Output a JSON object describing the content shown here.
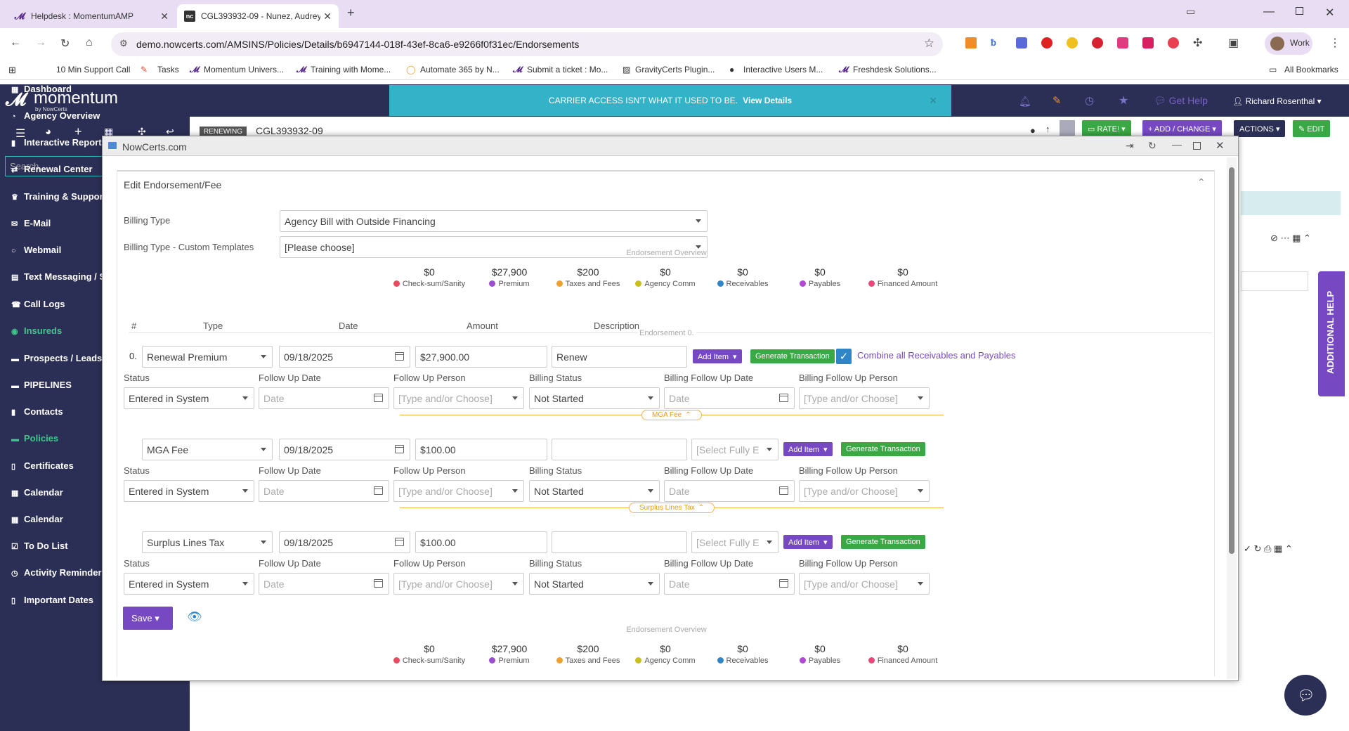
{
  "browser": {
    "tabs": [
      {
        "title": "Helpdesk : MomentumAMP"
      },
      {
        "title": "CGL393932-09 - Nunez, Audrey"
      }
    ],
    "url": "demo.nowcerts.com/AMSINS/Policies/Details/b6947144-018f-43ef-8ca6-e9266f0f31ec/Endorsements",
    "profile": "Work",
    "bookmarks": [
      "10 Min Support Call",
      "Tasks",
      "Momentum Univers...",
      "Training with Mome...",
      "Automate 365 by N...",
      "Submit a ticket : Mo...",
      "GravityCerts Plugin...",
      "Interactive Users M...",
      "Freshdesk Solutions..."
    ],
    "all_bookmarks": "All Bookmarks"
  },
  "app": {
    "logo": "momentum",
    "logo_sub": "by NowCerts",
    "banner_text": "CARRIER ACCESS ISN'T WHAT IT USED TO BE.",
    "banner_link": "View Details",
    "get_help": "Get Help",
    "user": "Richard Rosenthal",
    "search_placeholder": "Search",
    "policy_badge": "RENEWING",
    "policy_number": "CGL393932-09",
    "toolbar": {
      "rate": "RATE!",
      "add_change": "ADD / CHANGE",
      "actions": "ACTIONS",
      "edit": "EDIT"
    },
    "additional_help": "ADDITIONAL HELP"
  },
  "sidebar": {
    "items": [
      {
        "label": "Dashboard",
        "icon": "grid-icon"
      },
      {
        "label": "Agency Overview",
        "icon": "gauge-icon"
      },
      {
        "label": "Interactive Reports",
        "icon": "bar-chart-icon"
      },
      {
        "label": "Renewal Center",
        "icon": "refresh-icon"
      },
      {
        "label": "Training & Support",
        "icon": "trophy-icon"
      },
      {
        "label": "E-Mail",
        "icon": "mail-icon"
      },
      {
        "label": "Webmail",
        "icon": "circle-icon"
      },
      {
        "label": "Text Messaging / S",
        "icon": "message-icon"
      },
      {
        "label": "Call Logs",
        "icon": "phone-icon"
      },
      {
        "label": "Insureds",
        "icon": "eye-icon"
      },
      {
        "label": "Prospects / Leads",
        "icon": "folder-icon"
      },
      {
        "label": "PIPELINES",
        "icon": "folder-icon"
      },
      {
        "label": "Contacts",
        "icon": "contact-icon"
      },
      {
        "label": "Policies",
        "icon": "folder-icon"
      },
      {
        "label": "Certificates",
        "icon": "document-icon"
      },
      {
        "label": "Calendar",
        "icon": "calendar-icon"
      },
      {
        "label": "Calendar",
        "icon": "calendar-icon"
      },
      {
        "label": "To Do List",
        "icon": "checkbox-icon"
      },
      {
        "label": "Activity Reminders",
        "icon": "clock-icon"
      },
      {
        "label": "Important Dates",
        "icon": "document-icon"
      }
    ]
  },
  "modal": {
    "window_title": "NowCerts.com",
    "panel_title": "Edit Endorsement/Fee",
    "billing_type_label": "Billing Type",
    "billing_type_value": "Agency Bill with Outside Financing",
    "custom_templates_label": "Billing Type - Custom Templates",
    "custom_templates_value": "[Please choose]",
    "overview_title": "Endorsement Overview",
    "overview": [
      {
        "value": "$0",
        "label": "Check-sum/Sanity",
        "color": "#e84a5f"
      },
      {
        "value": "$27,900",
        "label": "Premium",
        "color": "#9b4fd0"
      },
      {
        "value": "$200",
        "label": "Taxes and Fees",
        "color": "#f0a030"
      },
      {
        "value": "$0",
        "label": "Agency Comm",
        "color": "#c8c020"
      },
      {
        "value": "$0",
        "label": "Receivables",
        "color": "#2e86c8"
      },
      {
        "value": "$0",
        "label": "Payables",
        "color": "#b04ad0"
      },
      {
        "value": "$0",
        "label": "Financed Amount",
        "color": "#e8487a"
      }
    ],
    "columns": {
      "num": "#",
      "type": "Type",
      "date": "Date",
      "amount": "Amount",
      "description": "Description"
    },
    "endorsement_label": "Endorsement 0.",
    "row_number": "0.",
    "sub_labels": {
      "status": "Status",
      "follow_up_date": "Follow Up Date",
      "follow_up_person": "Follow Up Person",
      "billing_status": "Billing Status",
      "billing_follow_up_date": "Billing Follow Up Date",
      "billing_follow_up_person": "Billing Follow Up Person"
    },
    "placeholders": {
      "date": "Date",
      "person": "[Type and/or Choose]",
      "select_fully": "[Select Fully E"
    },
    "add_item": "Add Item",
    "generate_transaction": "Generate Transaction",
    "combine_label": "Combine all Receivables and Payables",
    "lines": [
      {
        "type": "Renewal Premium",
        "date": "09/18/2025",
        "amount": "$27,900.00",
        "description": "Renew",
        "status": "Entered in System",
        "billing_status": "Not Started"
      },
      {
        "section": "MGA Fee",
        "type": "MGA Fee",
        "date": "09/18/2025",
        "amount": "$100.00",
        "description": "",
        "status": "Entered in System",
        "billing_status": "Not Started"
      },
      {
        "section": "Surplus Lines Tax",
        "type": "Surplus Lines Tax",
        "date": "09/18/2025",
        "amount": "$100.00",
        "description": "",
        "status": "Entered in System",
        "billing_status": "Not Started"
      }
    ],
    "save": "Save"
  }
}
